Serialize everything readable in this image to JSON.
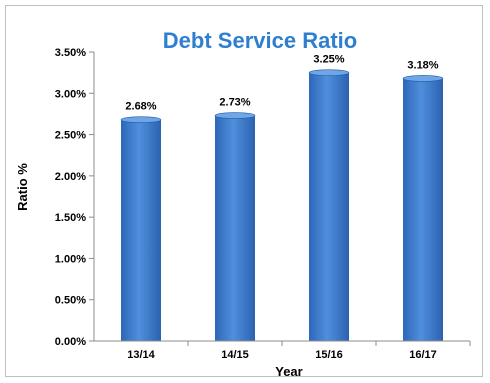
{
  "chart_data": {
    "type": "bar",
    "title": "Debt Service Ratio",
    "xlabel": "Year",
    "ylabel": "Ratio %",
    "categories": [
      "13/14",
      "14/15",
      "15/16",
      "16/17"
    ],
    "values": [
      2.68,
      2.73,
      3.25,
      3.18
    ],
    "data_labels": [
      "2.68%",
      "2.73%",
      "3.25%",
      "3.18%"
    ],
    "ylim": [
      0,
      3.5
    ],
    "yticks": [
      0,
      0.5,
      1.0,
      1.5,
      2.0,
      2.5,
      3.0,
      3.5
    ],
    "ytick_labels": [
      "0.00%",
      "0.50%",
      "1.00%",
      "1.50%",
      "2.00%",
      "2.50%",
      "3.00%",
      "3.50%"
    ],
    "grid": false,
    "legend": "none",
    "colors": {
      "bar": "#3f7fd0",
      "bar_dark": "#1f5aa6",
      "bar_light": "#6ea6e6",
      "title": "#2f7fd1"
    }
  }
}
